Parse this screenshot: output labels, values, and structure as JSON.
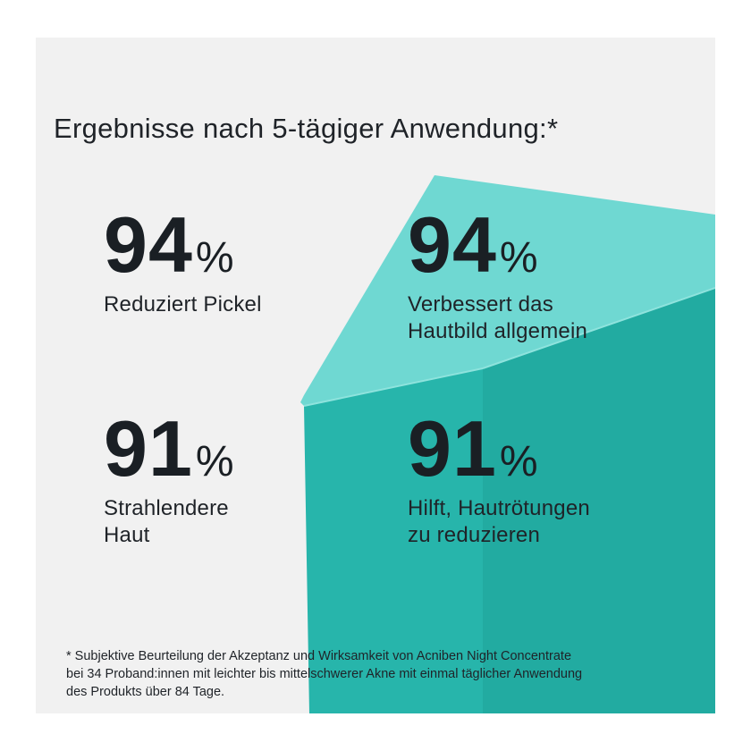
{
  "headline": "Ergebnisse nach 5-tägiger Anwendung:*",
  "stats": [
    {
      "value": "94",
      "unit": "%",
      "label": [
        "Reduziert Pickel"
      ]
    },
    {
      "value": "94",
      "unit": "%",
      "label": [
        "Verbessert das",
        "Hautbild allgemein"
      ]
    },
    {
      "value": "91",
      "unit": "%",
      "label": [
        "Strahlendere",
        "Haut"
      ]
    },
    {
      "value": "91",
      "unit": "%",
      "label": [
        "Hilft, Hautrötungen",
        "zu reduzieren"
      ]
    }
  ],
  "footnote": [
    "* Subjektive Beurteilung der Akzeptanz und Wirksamkeit von Acniben Night Concentrate",
    "bei 34 Proband:innen mit leichter bis mittelschwerer Akne mit einmal täglicher Anwendung",
    "des Produkts über 84 Tage."
  ],
  "colors": {
    "background": "#f1f1f1",
    "cube_top": "#6fd8d2",
    "cube_front": "#27b5ab",
    "cube_side": "#1f9f96",
    "text": "#1f2328"
  }
}
